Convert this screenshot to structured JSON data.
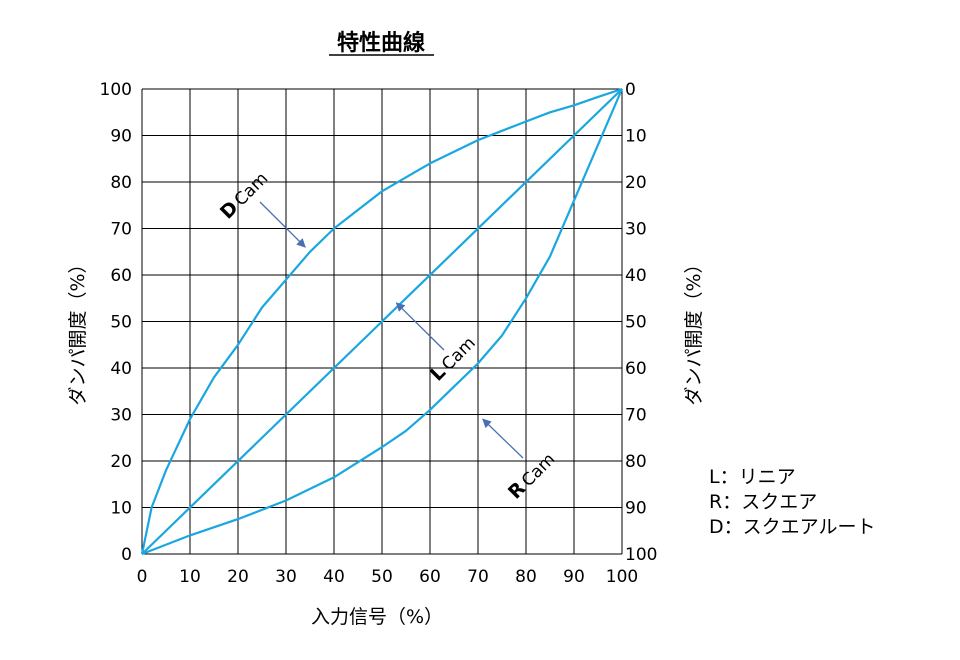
{
  "chart_data": {
    "type": "line",
    "title": "特性曲線",
    "xlabel": "入力信号（%）",
    "ylabel_left": "ダンパ開度（%）",
    "ylabel_right": "ダンパ開度（%）",
    "xlim": [
      0,
      100
    ],
    "ylim": [
      0,
      100
    ],
    "x_ticks": [
      "0",
      "10",
      "20",
      "30",
      "40",
      "50",
      "60",
      "70",
      "80",
      "90",
      "100"
    ],
    "y_ticks_left": [
      "0",
      "10",
      "20",
      "30",
      "40",
      "50",
      "60",
      "70",
      "80",
      "90",
      "100"
    ],
    "y_ticks_right": [
      "100",
      "90",
      "80",
      "70",
      "60",
      "50",
      "40",
      "30",
      "20",
      "10",
      "0"
    ],
    "grid": true,
    "line_color": "#1aa7e0",
    "grid_color": "#000000",
    "arrow_color": "#4a6fb3",
    "series": [
      {
        "name": "L Cam",
        "x": [
          0,
          100
        ],
        "y": [
          0,
          100
        ]
      },
      {
        "name": "D Cam",
        "x": [
          0,
          2,
          5,
          10,
          15,
          20,
          25,
          30,
          35,
          40,
          45,
          50,
          55,
          60,
          65,
          70,
          75,
          80,
          85,
          90,
          95,
          100
        ],
        "y": [
          0,
          10,
          18,
          29,
          38,
          45,
          53,
          59,
          65,
          70,
          74,
          78,
          81,
          84,
          86.5,
          89,
          91,
          93,
          95,
          96.5,
          98.3,
          100
        ]
      },
      {
        "name": "R Cam",
        "x": [
          0,
          10,
          20,
          30,
          40,
          50,
          55,
          60,
          65,
          70,
          75,
          80,
          85,
          90,
          95,
          100
        ],
        "y": [
          0,
          4,
          7.5,
          11.5,
          16.5,
          23,
          26.5,
          31,
          36,
          41,
          47,
          55,
          64,
          76,
          88,
          100
        ]
      }
    ],
    "annotations": [
      {
        "bold": "D",
        "text": "Cam",
        "arrow_to": [
          34,
          66
        ]
      },
      {
        "bold": "L",
        "text": "Cam",
        "arrow_to": [
          53,
          54
        ]
      },
      {
        "bold": "R",
        "text": "Cam",
        "arrow_to": [
          71,
          29
        ]
      }
    ]
  },
  "legend": [
    "L：リニア",
    "R：スクエア",
    "D：スクエアルート"
  ]
}
